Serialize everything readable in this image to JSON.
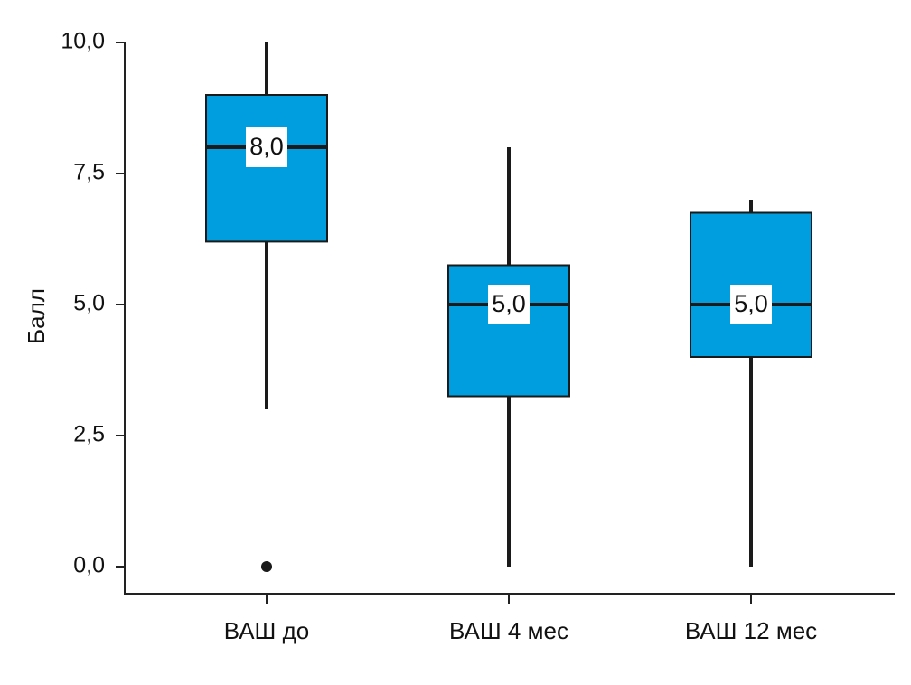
{
  "chart_data": {
    "type": "box",
    "y_label": "Балл",
    "categories": [
      "ВАШ до",
      "ВАШ 4 мес",
      "ВАШ 12 мес"
    ],
    "color": "#009ddf",
    "boxes": [
      {
        "whislo": 3.0,
        "q1": 6.2,
        "med": 8.0,
        "q3": 9.0,
        "whishi": 10.0,
        "fliers": [
          0.0
        ]
      },
      {
        "whislo": 0.0,
        "q1": 3.25,
        "med": 5.0,
        "q3": 5.75,
        "whishi": 8.0,
        "fliers": []
      },
      {
        "whislo": 0.0,
        "q1": 4.0,
        "med": 5.0,
        "q3": 6.75,
        "whishi": 7.0,
        "fliers": []
      }
    ],
    "value_labels": [
      "8,0",
      "5,0",
      "5,0"
    ],
    "ylim": [
      -0.5,
      10
    ],
    "yticks": [
      {
        "value": 0,
        "label": "0,0"
      },
      {
        "value": 2.5,
        "label": "2,5"
      },
      {
        "value": 5,
        "label": "5,0"
      },
      {
        "value": 7.5,
        "label": "7,5"
      },
      {
        "value": 10,
        "label": "10,0"
      }
    ]
  }
}
